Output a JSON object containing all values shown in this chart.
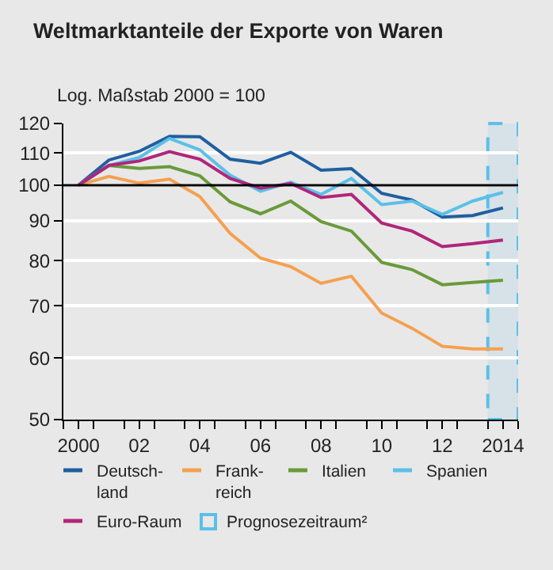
{
  "chart_data": {
    "type": "line",
    "title": "Weltmarktanteile der Exporte von Waren",
    "subtitle": "Log. Maßstab 2000 = 100",
    "x": [
      2000,
      2001,
      2002,
      2003,
      2004,
      2005,
      2006,
      2007,
      2008,
      2009,
      2010,
      2011,
      2012,
      2013,
      2014
    ],
    "series": [
      {
        "name": "Deutsch-\nland",
        "color": "#1f5fa0",
        "values": [
          100,
          107.7,
          110.5,
          115.5,
          115.4,
          108,
          106.7,
          110.2,
          104.5,
          105,
          97.6,
          95.7,
          91,
          91.4,
          93.5
        ]
      },
      {
        "name": "Frank-\nreich",
        "color": "#f5a050",
        "values": [
          100,
          102.6,
          100.6,
          101.8,
          96.7,
          86.7,
          80.6,
          78.6,
          74.8,
          76.4,
          68.5,
          65.5,
          62.1,
          61.6,
          61.6
        ]
      },
      {
        "name": "Italien",
        "color": "#6a9a3a",
        "values": [
          100,
          106,
          105.1,
          105.6,
          102.8,
          95.2,
          91.9,
          95.4,
          89.8,
          87.3,
          79.6,
          77.9,
          74.5,
          75,
          75.5
        ]
      },
      {
        "name": "Spanien",
        "color": "#5bc0e8",
        "values": [
          100,
          106,
          108.5,
          114.8,
          111,
          103,
          98.2,
          100.9,
          97.3,
          102,
          94.4,
          95.4,
          91.7,
          95.4,
          97.9
        ]
      },
      {
        "name": "Euro-Raum",
        "color": "#b0267a",
        "values": [
          100,
          106,
          107.4,
          110.4,
          108,
          102,
          99.1,
          100.5,
          96.4,
          97.3,
          89.4,
          87.3,
          83.4,
          84.1,
          85
        ]
      }
    ],
    "log": "y",
    "ylim": [
      50,
      120
    ],
    "yticks": [
      50,
      60,
      70,
      80,
      90,
      100,
      110,
      120
    ],
    "xlim": [
      1999.5,
      2014.5
    ],
    "xticks": [
      {
        "value": 2000,
        "label": "2000"
      },
      {
        "value": 2002,
        "label": "02"
      },
      {
        "value": 2004,
        "label": "04"
      },
      {
        "value": 2006,
        "label": "06"
      },
      {
        "value": 2008,
        "label": "08"
      },
      {
        "value": 2010,
        "label": "10"
      },
      {
        "value": 2012,
        "label": "12"
      },
      {
        "value": 2014,
        "label": "2014"
      }
    ],
    "ref_lines": [
      {
        "axis": "y",
        "value": 100,
        "color": "#000000"
      }
    ],
    "bands": [
      {
        "axis": "x",
        "from": 2013.5,
        "to": 2014.5,
        "label": "Prognosezeitraum²",
        "color": "#5bc0e8"
      }
    ],
    "grid": "y",
    "legend": "bottom",
    "marker": "none",
    "line_style": "solid"
  }
}
